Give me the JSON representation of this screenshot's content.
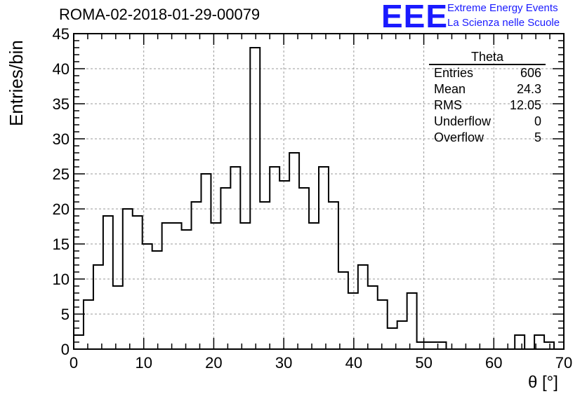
{
  "header": {
    "run_title": "ROMA-02-2018-01-29-00079",
    "logo_text": "EEE",
    "logo_line1": "Extreme Energy Events",
    "logo_line2": "La Scienza nelle Scuole",
    "logo_color": "#1a1aff"
  },
  "stats_box": {
    "title": "Theta",
    "rows": [
      {
        "label": "Entries",
        "value": "606"
      },
      {
        "label": "Mean",
        "value": "24.3"
      },
      {
        "label": "RMS",
        "value": "12.05"
      },
      {
        "label": "Underflow",
        "value": "0"
      },
      {
        "label": "Overflow",
        "value": "5"
      }
    ]
  },
  "chart_data": {
    "type": "bar",
    "histogram": true,
    "xlabel": "θ [°]",
    "ylabel": "Entries/bin",
    "xlim": [
      0,
      70
    ],
    "ylim": [
      0,
      45
    ],
    "bin_width": 1.4,
    "x_ticks": [
      "0",
      "10",
      "20",
      "30",
      "40",
      "50",
      "60",
      "70"
    ],
    "y_ticks": [
      "0",
      "5",
      "10",
      "15",
      "20",
      "25",
      "30",
      "35",
      "40",
      "45"
    ],
    "grid": true,
    "line_color": "#000000",
    "values": [
      2,
      7,
      12,
      19,
      9,
      20,
      19,
      15,
      14,
      18,
      18,
      17,
      21,
      25,
      18,
      23,
      26,
      18,
      43,
      21,
      26,
      24,
      28,
      23,
      18,
      26,
      21,
      11,
      8,
      12,
      9,
      7,
      3,
      4,
      8,
      1,
      1,
      1,
      0,
      0,
      0,
      0,
      0,
      0,
      0,
      2,
      0,
      2,
      1,
      0
    ]
  }
}
